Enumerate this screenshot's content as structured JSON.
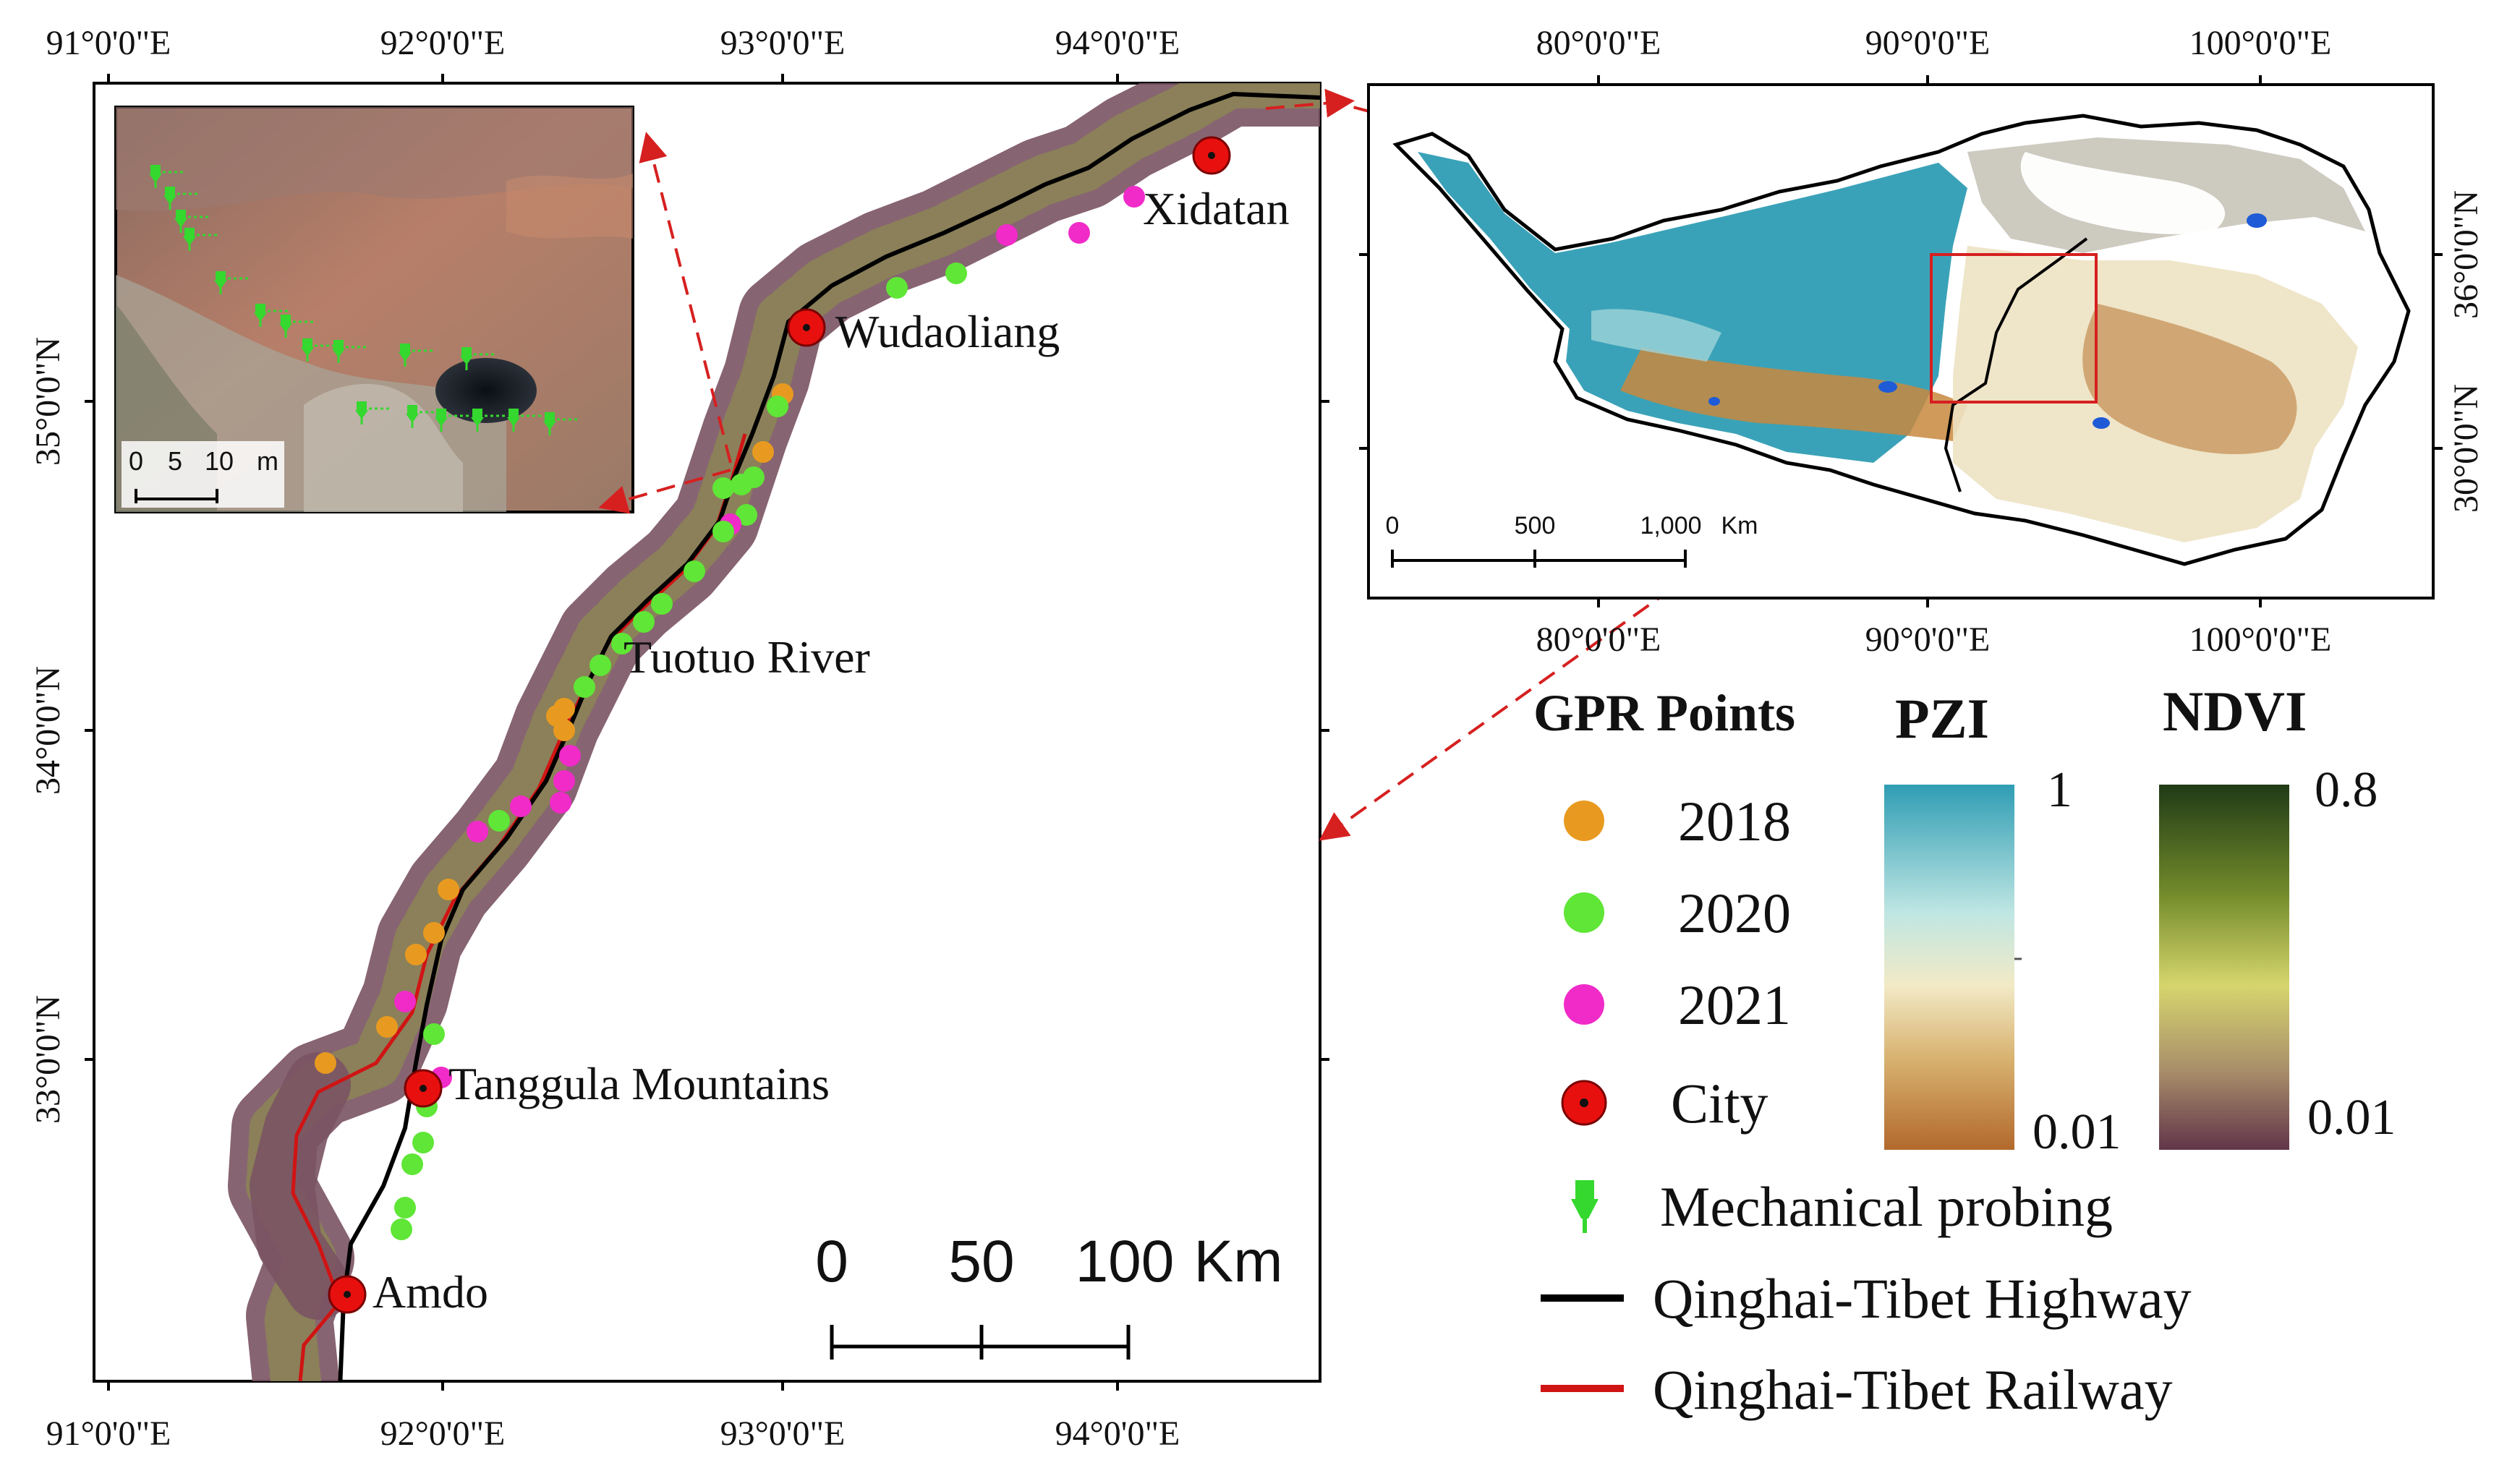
{
  "main_map": {
    "lon_labels": [
      "91°0'0\"E",
      "92°0'0\"E",
      "93°0'0\"E",
      "94°0'0\"E"
    ],
    "lat_labels": [
      "35°0'0\"N",
      "34°0'0\"N",
      "33°0'0\"N"
    ],
    "places": [
      "Xidatan",
      "Wudaoliang",
      "Tuotuo River",
      "Tanggula Mountains",
      "Amdo"
    ],
    "scale": {
      "ticks": [
        "0",
        "50",
        "100"
      ],
      "unit": "Km"
    }
  },
  "inset_photo": {
    "scale": {
      "ticks": [
        "0",
        "5",
        "10"
      ],
      "unit": "m"
    }
  },
  "overview_map": {
    "lon_labels": [
      "80°0'0\"E",
      "90°0'0\"E",
      "100°0'0\"E"
    ],
    "lat_labels": [
      "36°0'0\"N",
      "30°0'0\"N"
    ],
    "scale": {
      "ticks": [
        "0",
        "500",
        "1,000"
      ],
      "unit": "Km"
    }
  },
  "legend": {
    "gpr_title": "GPR Points",
    "pzi_title": "PZI",
    "ndvi_title": "NDVI",
    "pzi_max": "1",
    "pzi_min": "0.01",
    "ndvi_max": "0.8",
    "ndvi_min": "0.01",
    "items": [
      {
        "label": "2018",
        "color": "#E89A20"
      },
      {
        "label": "2020",
        "color": "#5FE636"
      },
      {
        "label": "2021",
        "color": "#F02BC8"
      },
      {
        "label": "City",
        "color": "#E8100F"
      },
      {
        "label": "Mechanical probing",
        "color": "#34D82E"
      },
      {
        "label": "Qinghai-Tibet Highway",
        "color": "#000000"
      },
      {
        "label": "Qinghai-Tibet Railway",
        "color": "#D01414"
      }
    ]
  },
  "colors": {
    "pzi_ramp": [
      "#2F9DB4",
      "#BFE6E3",
      "#F2EAC6",
      "#D8B270",
      "#B2692C"
    ],
    "ndvi_ramp": [
      "#203A16",
      "#738B2B",
      "#D6D56D",
      "#A98F6A",
      "#623549"
    ],
    "accent_red": "#D62020"
  }
}
